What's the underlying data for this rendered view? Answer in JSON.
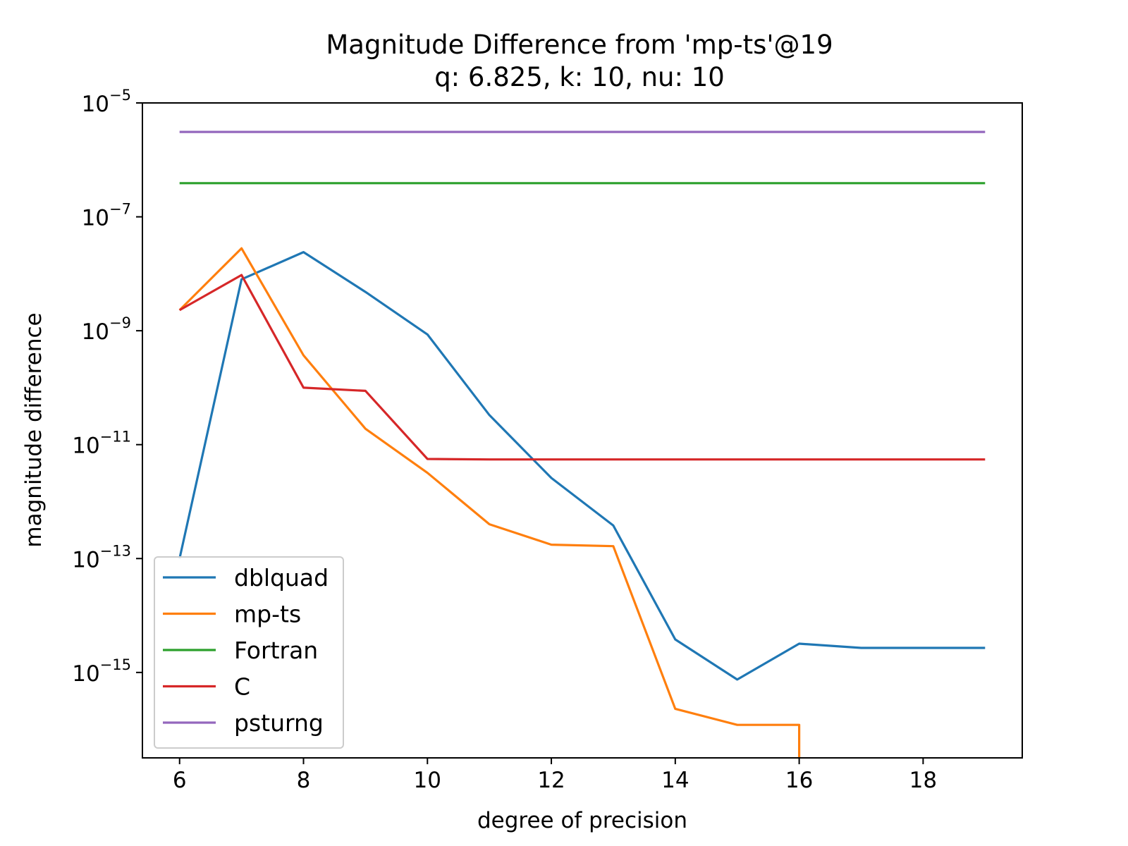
{
  "chart_data": {
    "type": "line",
    "title": "Magnitude Difference from 'mp-ts'@19",
    "subtitle": "q: 6.825, k: 10, nu: 10",
    "xlabel": "degree of precision",
    "ylabel": "magnitude difference",
    "xlim": [
      5.4,
      19.6
    ],
    "ylim_log10": [
      -16.5,
      -5
    ],
    "yscale": "log",
    "x_ticks": [
      "6",
      "8",
      "10",
      "12",
      "14",
      "16",
      "18"
    ],
    "y_ticks": [
      {
        "base": "10",
        "exp": "−5"
      },
      {
        "base": "10",
        "exp": "−7"
      },
      {
        "base": "10",
        "exp": "−9"
      },
      {
        "base": "10",
        "exp": "−11"
      },
      {
        "base": "10",
        "exp": "−13"
      },
      {
        "base": "10",
        "exp": "−15"
      }
    ],
    "legend_position": "lower-left",
    "series": [
      {
        "name": "dblquad",
        "color": "#1f77b4",
        "x": [
          6,
          7,
          8,
          9,
          10,
          11,
          12,
          13,
          14,
          15,
          16,
          17,
          18,
          19
        ],
        "y": [
          1e-13,
          8e-09,
          2.4e-08,
          4.8e-09,
          8.6e-10,
          3.3e-11,
          2.6e-12,
          3.8e-13,
          3.8e-15,
          7.5e-16,
          3.2e-15,
          2.7e-15,
          2.7e-15,
          2.7e-15
        ]
      },
      {
        "name": "mp-ts",
        "color": "#ff7f0e",
        "x": [
          6,
          7,
          8,
          9,
          10,
          11,
          12,
          13,
          14,
          15,
          16,
          16
        ],
        "y": [
          2.3e-09,
          2.8e-08,
          3.7e-10,
          1.9e-11,
          3.2e-12,
          4e-13,
          1.75e-13,
          1.65e-13,
          2.3e-16,
          1.2e-16,
          1.2e-16,
          3e-17
        ]
      },
      {
        "name": "Fortran",
        "color": "#2ca02c",
        "x": [
          6,
          7,
          8,
          9,
          10,
          11,
          12,
          13,
          14,
          15,
          16,
          17,
          18,
          19
        ],
        "y": [
          3.9e-07,
          3.9e-07,
          3.9e-07,
          3.9e-07,
          3.9e-07,
          3.9e-07,
          3.9e-07,
          3.9e-07,
          3.9e-07,
          3.9e-07,
          3.9e-07,
          3.9e-07,
          3.9e-07,
          3.9e-07
        ]
      },
      {
        "name": "C",
        "color": "#d62728",
        "x": [
          6,
          7,
          8,
          9,
          10,
          11,
          12,
          13,
          14,
          15,
          16,
          17,
          18,
          19
        ],
        "y": [
          2.3e-09,
          9.5e-09,
          1e-10,
          8.8e-11,
          5.6e-12,
          5.5e-12,
          5.5e-12,
          5.5e-12,
          5.5e-12,
          5.5e-12,
          5.5e-12,
          5.5e-12,
          5.5e-12,
          5.5e-12
        ]
      },
      {
        "name": "psturng",
        "color": "#9467bd",
        "x": [
          6,
          7,
          8,
          9,
          10,
          11,
          12,
          13,
          14,
          15,
          16,
          17,
          18,
          19
        ],
        "y": [
          3.1e-06,
          3.1e-06,
          3.1e-06,
          3.1e-06,
          3.1e-06,
          3.1e-06,
          3.1e-06,
          3.1e-06,
          3.1e-06,
          3.1e-06,
          3.1e-06,
          3.1e-06,
          3.1e-06,
          3.1e-06
        ]
      }
    ]
  }
}
